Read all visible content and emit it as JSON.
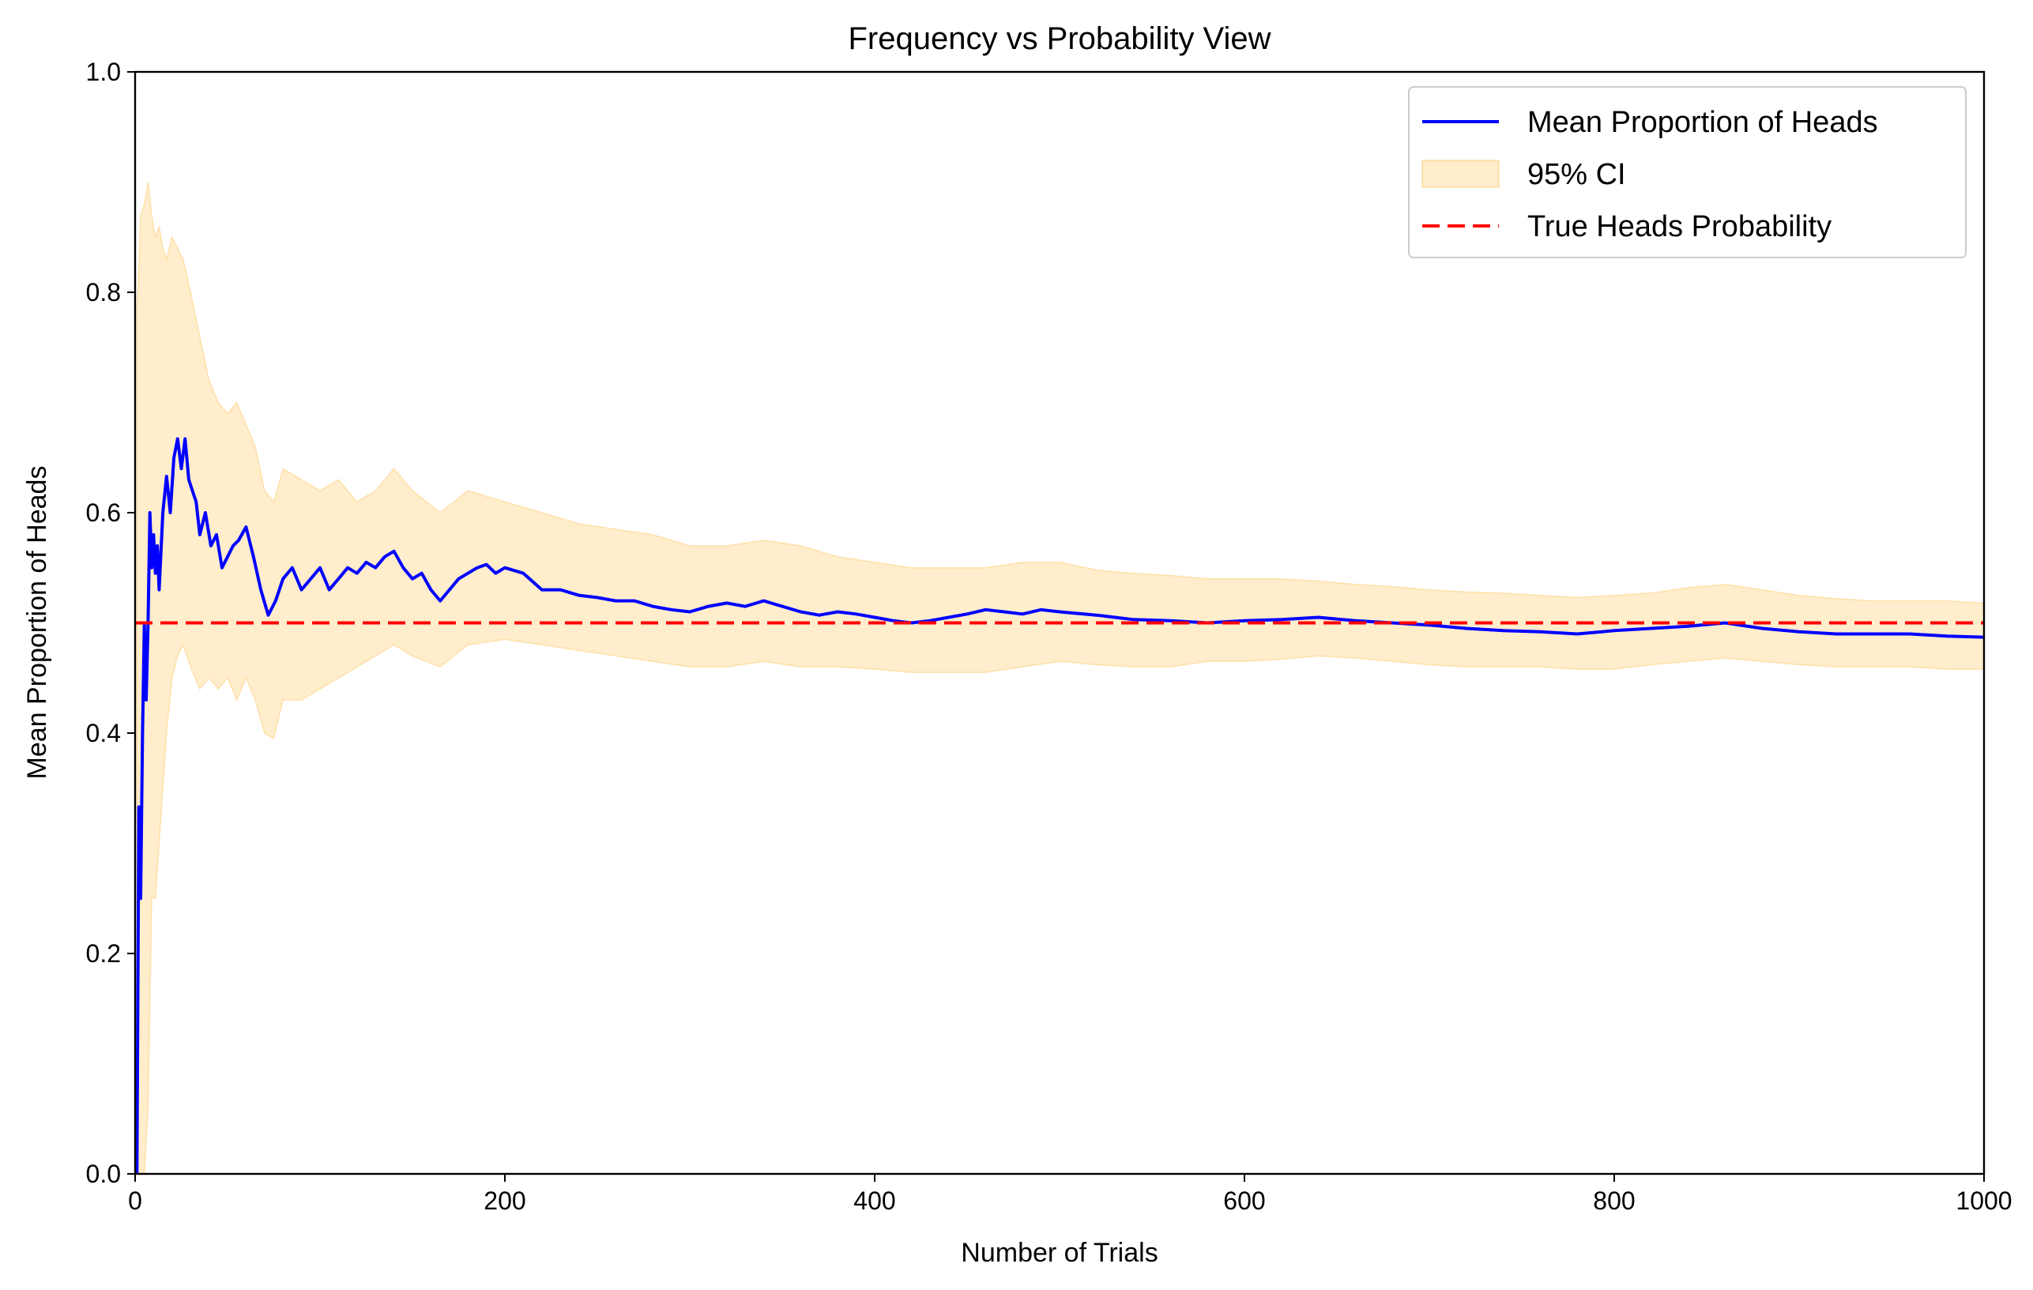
{
  "chart_data": {
    "type": "line",
    "title": "Frequency vs Probability View",
    "xlabel": "Number of Trials",
    "ylabel": "Mean Proportion of Heads",
    "xlim": [
      0,
      1000
    ],
    "ylim": [
      0,
      1.0
    ],
    "xticks": [
      "0",
      "200",
      "400",
      "600",
      "800",
      "1000"
    ],
    "yticks": [
      "0.0",
      "0.2",
      "0.4",
      "0.6",
      "0.8",
      "1.0"
    ],
    "grid": false,
    "legend_position": "top-right",
    "legend": [
      {
        "label": "Mean Proportion of Heads",
        "kind": "line",
        "color": "#0000ff"
      },
      {
        "label": "95% CI",
        "kind": "band",
        "color": "#ffa500"
      },
      {
        "label": "True Heads Probability",
        "kind": "dashed",
        "color": "#ff0000"
      }
    ],
    "series": [
      {
        "name": "Mean Proportion of Heads",
        "color": "#0000ff",
        "x": [
          1,
          2,
          3,
          4,
          5,
          6,
          7,
          8,
          9,
          10,
          11,
          12,
          13,
          15,
          17,
          19,
          21,
          23,
          25,
          27,
          29,
          31,
          33,
          35,
          38,
          41,
          44,
          47,
          50,
          53,
          56,
          60,
          64,
          68,
          72,
          76,
          80,
          85,
          90,
          95,
          100,
          105,
          110,
          115,
          120,
          125,
          130,
          135,
          140,
          145,
          150,
          155,
          160,
          165,
          170,
          175,
          180,
          185,
          190,
          195,
          200,
          210,
          220,
          230,
          240,
          250,
          260,
          270,
          280,
          290,
          300,
          310,
          320,
          330,
          340,
          350,
          360,
          370,
          380,
          390,
          400,
          410,
          420,
          430,
          440,
          450,
          460,
          470,
          480,
          490,
          500,
          520,
          540,
          560,
          580,
          600,
          620,
          640,
          660,
          680,
          700,
          720,
          740,
          760,
          780,
          800,
          820,
          840,
          860,
          880,
          900,
          920,
          940,
          960,
          980,
          1000
        ],
        "y": [
          0.0,
          0.333,
          0.25,
          0.4,
          0.5,
          0.43,
          0.5,
          0.6,
          0.55,
          0.58,
          0.545,
          0.57,
          0.53,
          0.6,
          0.633,
          0.6,
          0.65,
          0.667,
          0.64,
          0.667,
          0.63,
          0.62,
          0.61,
          0.58,
          0.6,
          0.57,
          0.58,
          0.55,
          0.56,
          0.57,
          0.575,
          0.587,
          0.56,
          0.53,
          0.507,
          0.52,
          0.54,
          0.55,
          0.53,
          0.54,
          0.55,
          0.53,
          0.54,
          0.55,
          0.545,
          0.555,
          0.55,
          0.56,
          0.565,
          0.55,
          0.54,
          0.545,
          0.53,
          0.52,
          0.53,
          0.54,
          0.545,
          0.55,
          0.553,
          0.545,
          0.55,
          0.545,
          0.53,
          0.53,
          0.525,
          0.523,
          0.52,
          0.52,
          0.515,
          0.512,
          0.51,
          0.515,
          0.518,
          0.515,
          0.52,
          0.515,
          0.51,
          0.507,
          0.51,
          0.508,
          0.505,
          0.502,
          0.5,
          0.502,
          0.505,
          0.508,
          0.512,
          0.51,
          0.508,
          0.512,
          0.51,
          0.507,
          0.503,
          0.502,
          0.5,
          0.502,
          0.503,
          0.505,
          0.502,
          0.5,
          0.498,
          0.495,
          0.493,
          0.492,
          0.49,
          0.493,
          0.495,
          0.497,
          0.5,
          0.495,
          0.492,
          0.49,
          0.49,
          0.49,
          0.488,
          0.487
        ]
      },
      {
        "name": "True Heads Probability",
        "color": "#ff0000",
        "x": [
          0,
          1000
        ],
        "y": [
          0.5,
          0.5
        ]
      }
    ],
    "band": {
      "name": "95% CI",
      "color": "#ffa500",
      "x": [
        1,
        3,
        5,
        7,
        9,
        11,
        13,
        15,
        17,
        20,
        23,
        26,
        30,
        35,
        40,
        45,
        50,
        55,
        60,
        65,
        70,
        75,
        80,
        90,
        100,
        110,
        120,
        130,
        140,
        150,
        165,
        180,
        200,
        220,
        240,
        260,
        280,
        300,
        320,
        340,
        360,
        380,
        400,
        420,
        440,
        460,
        480,
        500,
        520,
        540,
        560,
        580,
        600,
        620,
        640,
        660,
        680,
        700,
        720,
        740,
        760,
        780,
        800,
        820,
        840,
        860,
        880,
        900,
        920,
        940,
        960,
        980,
        1000
      ],
      "upper": [
        0.78,
        0.87,
        0.88,
        0.9,
        0.87,
        0.85,
        0.86,
        0.84,
        0.83,
        0.85,
        0.84,
        0.83,
        0.8,
        0.76,
        0.72,
        0.7,
        0.69,
        0.7,
        0.68,
        0.66,
        0.62,
        0.61,
        0.64,
        0.63,
        0.62,
        0.63,
        0.61,
        0.62,
        0.64,
        0.62,
        0.6,
        0.62,
        0.61,
        0.6,
        0.59,
        0.585,
        0.58,
        0.57,
        0.57,
        0.575,
        0.57,
        0.56,
        0.555,
        0.55,
        0.55,
        0.55,
        0.555,
        0.555,
        0.548,
        0.545,
        0.543,
        0.54,
        0.54,
        0.54,
        0.538,
        0.535,
        0.533,
        0.53,
        0.528,
        0.527,
        0.525,
        0.523,
        0.525,
        0.527,
        0.532,
        0.535,
        0.53,
        0.525,
        0.522,
        0.52,
        0.52,
        0.52,
        0.518
      ],
      "lower": [
        0.0,
        0.0,
        0.0,
        0.06,
        0.25,
        0.25,
        0.3,
        0.35,
        0.4,
        0.45,
        0.47,
        0.48,
        0.46,
        0.44,
        0.45,
        0.44,
        0.45,
        0.43,
        0.45,
        0.43,
        0.4,
        0.395,
        0.43,
        0.43,
        0.44,
        0.45,
        0.46,
        0.47,
        0.48,
        0.47,
        0.46,
        0.48,
        0.485,
        0.48,
        0.475,
        0.47,
        0.465,
        0.46,
        0.46,
        0.465,
        0.46,
        0.46,
        0.458,
        0.455,
        0.455,
        0.455,
        0.46,
        0.465,
        0.462,
        0.46,
        0.46,
        0.465,
        0.465,
        0.467,
        0.47,
        0.468,
        0.465,
        0.462,
        0.46,
        0.46,
        0.46,
        0.458,
        0.458,
        0.462,
        0.465,
        0.468,
        0.465,
        0.462,
        0.46,
        0.46,
        0.46,
        0.458,
        0.458
      ]
    }
  }
}
